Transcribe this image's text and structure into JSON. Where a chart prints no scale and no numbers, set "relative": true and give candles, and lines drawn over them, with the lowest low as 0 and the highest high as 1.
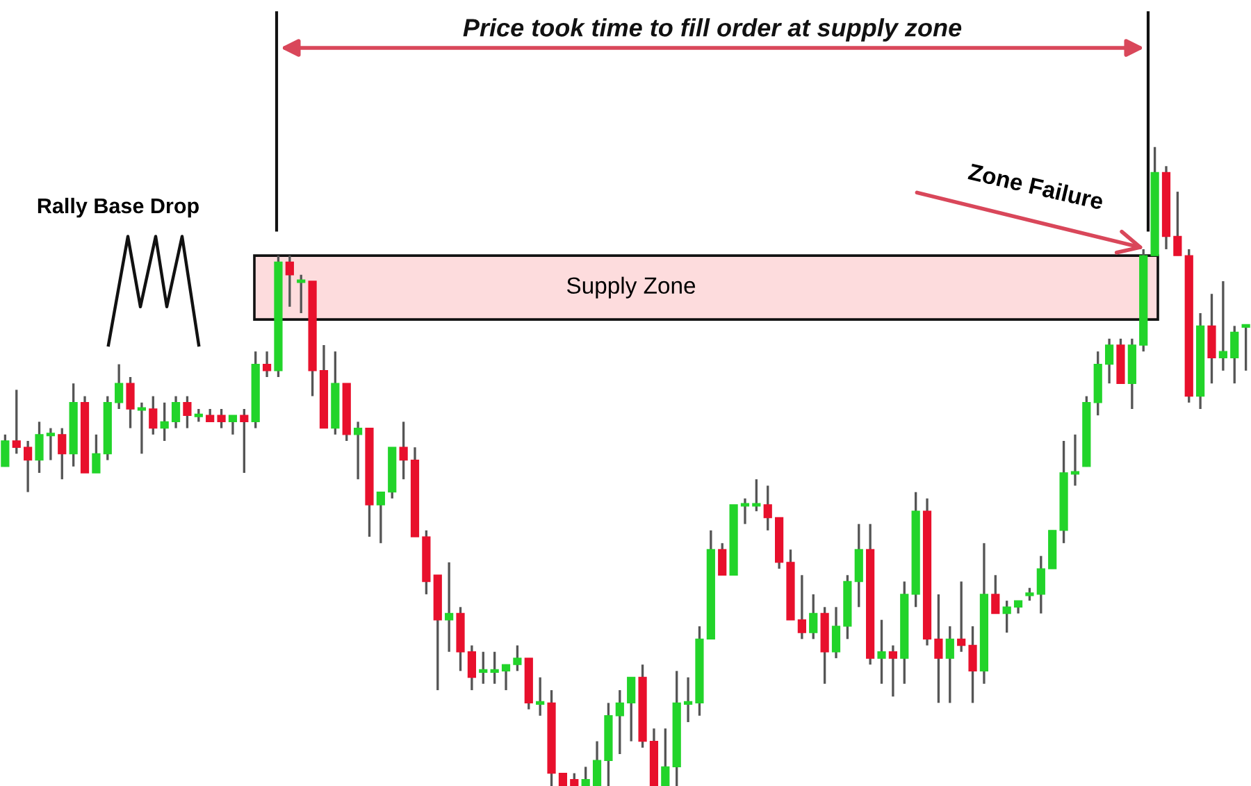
{
  "chart_data": {
    "type": "candlestick",
    "relative": true,
    "categories": [
      null,
      null,
      null,
      null,
      null,
      null,
      null,
      null,
      null,
      null,
      null,
      null,
      null,
      null,
      null,
      null,
      null,
      null,
      null,
      null,
      null,
      null,
      null,
      null,
      null,
      null,
      null,
      null,
      null,
      null,
      null,
      null,
      null,
      null,
      null,
      null,
      null,
      null,
      null,
      null,
      null,
      null,
      null,
      null,
      null,
      null,
      null,
      null,
      null,
      null,
      null,
      null,
      null,
      null,
      null,
      null,
      null,
      null,
      null,
      null,
      null,
      null,
      null,
      null,
      null,
      null,
      null,
      null,
      null,
      null,
      null,
      null,
      null,
      null,
      null,
      null,
      null,
      null,
      null,
      null,
      null,
      null,
      null,
      null,
      null,
      null,
      null,
      null,
      null,
      null,
      null,
      null,
      null,
      null,
      null,
      null,
      null,
      null,
      null,
      null,
      null,
      null,
      null,
      null,
      null,
      null,
      null,
      null,
      null,
      null
    ],
    "ohlc": [
      [
        0.5,
        0.55,
        0.5,
        0.54
      ],
      [
        0.54,
        0.62,
        0.52,
        0.53
      ],
      [
        0.53,
        0.54,
        0.46,
        0.51
      ],
      [
        0.51,
        0.57,
        0.49,
        0.55
      ],
      [
        0.55,
        0.56,
        0.51,
        0.55
      ],
      [
        0.55,
        0.56,
        0.48,
        0.52
      ],
      [
        0.52,
        0.63,
        0.5,
        0.6
      ],
      [
        0.6,
        0.61,
        0.49,
        0.49
      ],
      [
        0.49,
        0.55,
        0.49,
        0.52
      ],
      [
        0.52,
        0.61,
        0.51,
        0.6
      ],
      [
        0.6,
        0.66,
        0.59,
        0.63
      ],
      [
        0.63,
        0.64,
        0.56,
        0.59
      ],
      [
        0.59,
        0.6,
        0.52,
        0.59
      ],
      [
        0.59,
        0.61,
        0.55,
        0.56
      ],
      [
        0.56,
        0.6,
        0.54,
        0.57
      ],
      [
        0.57,
        0.61,
        0.56,
        0.6
      ],
      [
        0.6,
        0.61,
        0.56,
        0.58
      ],
      [
        0.58,
        0.59,
        0.57,
        0.58
      ],
      [
        0.58,
        0.59,
        0.57,
        0.57
      ],
      [
        0.58,
        0.59,
        0.56,
        0.57
      ],
      [
        0.57,
        0.58,
        0.55,
        0.58
      ],
      [
        0.58,
        0.59,
        0.49,
        0.57
      ],
      [
        0.57,
        0.68,
        0.56,
        0.66
      ],
      [
        0.66,
        0.68,
        0.64,
        0.65
      ],
      [
        0.65,
        0.83,
        0.64,
        0.82
      ],
      [
        0.82,
        0.83,
        0.75,
        0.8
      ],
      [
        0.79,
        0.8,
        0.74,
        0.79
      ],
      [
        0.79,
        0.79,
        0.61,
        0.65
      ],
      [
        0.65,
        0.69,
        0.56,
        0.56
      ],
      [
        0.56,
        0.68,
        0.55,
        0.63
      ],
      [
        0.63,
        0.63,
        0.54,
        0.55
      ],
      [
        0.55,
        0.57,
        0.48,
        0.56
      ],
      [
        0.56,
        0.56,
        0.39,
        0.44
      ],
      [
        0.44,
        0.46,
        0.38,
        0.46
      ],
      [
        0.46,
        0.53,
        0.45,
        0.53
      ],
      [
        0.53,
        0.57,
        0.48,
        0.51
      ],
      [
        0.51,
        0.53,
        0.39,
        0.39
      ],
      [
        0.39,
        0.4,
        0.3,
        0.32
      ],
      [
        0.33,
        0.33,
        0.15,
        0.26
      ],
      [
        0.26,
        0.35,
        0.21,
        0.27
      ],
      [
        0.27,
        0.28,
        0.18,
        0.21
      ],
      [
        0.21,
        0.22,
        0.15,
        0.17
      ],
      [
        0.18,
        0.21,
        0.16,
        0.18
      ],
      [
        0.18,
        0.21,
        0.16,
        0.18
      ],
      [
        0.18,
        0.19,
        0.15,
        0.19
      ],
      [
        0.19,
        0.22,
        0.18,
        0.2
      ],
      [
        0.2,
        0.2,
        0.12,
        0.13
      ],
      [
        0.13,
        0.17,
        0.11,
        0.13
      ],
      [
        0.13,
        0.15,
        0.0,
        0.02
      ],
      [
        0.02,
        0.02,
        0.0,
        0.0
      ],
      [
        0.01,
        0.02,
        0.0,
        0.0
      ],
      [
        0.0,
        0.03,
        0.0,
        0.01
      ],
      [
        0.0,
        0.07,
        0.0,
        0.04
      ],
      [
        0.04,
        0.13,
        0.0,
        0.11
      ],
      [
        0.11,
        0.15,
        0.05,
        0.13
      ],
      [
        0.13,
        0.17,
        0.07,
        0.17
      ],
      [
        0.17,
        0.19,
        0.06,
        0.07
      ],
      [
        0.07,
        0.09,
        0.0,
        0.0
      ],
      [
        0.0,
        0.09,
        0.0,
        0.03
      ],
      [
        0.03,
        0.18,
        0.0,
        0.13
      ],
      [
        0.13,
        0.17,
        0.1,
        0.13
      ],
      [
        0.13,
        0.25,
        0.11,
        0.23
      ],
      [
        0.23,
        0.4,
        0.23,
        0.37
      ],
      [
        0.37,
        0.38,
        0.33,
        0.33
      ],
      [
        0.33,
        0.44,
        0.33,
        0.44
      ],
      [
        0.44,
        0.45,
        0.41,
        0.44
      ],
      [
        0.44,
        0.48,
        0.43,
        0.44
      ],
      [
        0.44,
        0.47,
        0.4,
        0.42
      ],
      [
        0.42,
        0.42,
        0.34,
        0.35
      ],
      [
        0.35,
        0.37,
        0.26,
        0.26
      ],
      [
        0.26,
        0.33,
        0.23,
        0.24
      ],
      [
        0.24,
        0.3,
        0.23,
        0.27
      ],
      [
        0.27,
        0.28,
        0.16,
        0.21
      ],
      [
        0.21,
        0.28,
        0.2,
        0.25
      ],
      [
        0.25,
        0.33,
        0.23,
        0.32
      ],
      [
        0.32,
        0.41,
        0.28,
        0.37
      ],
      [
        0.37,
        0.41,
        0.19,
        0.2
      ],
      [
        0.2,
        0.26,
        0.16,
        0.21
      ],
      [
        0.21,
        0.22,
        0.14,
        0.2
      ],
      [
        0.2,
        0.32,
        0.16,
        0.3
      ],
      [
        0.3,
        0.46,
        0.28,
        0.43
      ],
      [
        0.43,
        0.45,
        0.22,
        0.23
      ],
      [
        0.23,
        0.3,
        0.13,
        0.2
      ],
      [
        0.2,
        0.25,
        0.13,
        0.23
      ],
      [
        0.23,
        0.32,
        0.21,
        0.22
      ],
      [
        0.22,
        0.25,
        0.13,
        0.18
      ],
      [
        0.18,
        0.38,
        0.16,
        0.3
      ],
      [
        0.3,
        0.33,
        0.27,
        0.27
      ],
      [
        0.27,
        0.29,
        0.24,
        0.28
      ],
      [
        0.28,
        0.29,
        0.27,
        0.29
      ],
      [
        0.3,
        0.31,
        0.29,
        0.3
      ],
      [
        0.3,
        0.36,
        0.27,
        0.34
      ],
      [
        0.34,
        0.4,
        0.34,
        0.4
      ],
      [
        0.4,
        0.54,
        0.38,
        0.49
      ],
      [
        0.49,
        0.55,
        0.47,
        0.49
      ],
      [
        0.5,
        0.61,
        0.5,
        0.6
      ],
      [
        0.6,
        0.68,
        0.58,
        0.66
      ],
      [
        0.66,
        0.7,
        0.63,
        0.69
      ],
      [
        0.69,
        0.7,
        0.63,
        0.63
      ],
      [
        0.63,
        0.7,
        0.59,
        0.69
      ],
      [
        0.69,
        0.84,
        0.68,
        0.83
      ],
      [
        0.83,
        1.0,
        0.83,
        0.96
      ],
      [
        0.96,
        0.97,
        0.84,
        0.86
      ],
      [
        0.86,
        0.93,
        0.83,
        0.83
      ],
      [
        0.83,
        0.84,
        0.6,
        0.61
      ],
      [
        0.61,
        0.74,
        0.59,
        0.72
      ],
      [
        0.72,
        0.77,
        0.63,
        0.67
      ],
      [
        0.67,
        0.79,
        0.65,
        0.68
      ],
      [
        0.67,
        0.72,
        0.63,
        0.71
      ],
      [
        0.72,
        0.72,
        0.65,
        0.72
      ]
    ],
    "bands": [
      {
        "axis": "y",
        "from": 0.73,
        "to": 0.83,
        "label": "Supply Zone",
        "color": "#fddcdd"
      }
    ],
    "annotations": [
      "Price took time to fill order at supply zone",
      "Rally Base Drop",
      "Zone Failure"
    ]
  }
}
